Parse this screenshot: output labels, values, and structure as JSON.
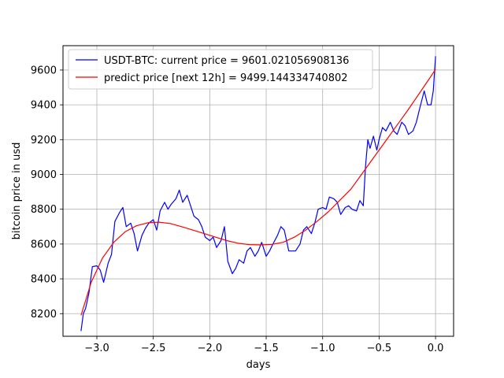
{
  "chart_data": {
    "type": "line",
    "title": "",
    "xlabel": "days",
    "ylabel": "bitcoin price in usd",
    "xlim": [
      -3.3,
      0.16
    ],
    "ylim": [
      8070,
      9740
    ],
    "grid": true,
    "legend_position": "upper-left",
    "x_ticks": [
      -3.0,
      -2.5,
      -2.0,
      -1.5,
      -1.0,
      -0.5,
      0.0
    ],
    "x_tick_labels": [
      "−3.0",
      "−2.5",
      "−2.0",
      "−1.5",
      "−1.0",
      "−0.5",
      "0.0"
    ],
    "y_ticks": [
      8200,
      8400,
      8600,
      8800,
      9000,
      9200,
      9400,
      9600
    ],
    "y_tick_labels": [
      "8200",
      "8400",
      "8600",
      "8800",
      "9000",
      "9200",
      "9400",
      "9600"
    ],
    "series": [
      {
        "name": "USDT-BTC: current price = 9601.021056908136",
        "color": "#0000ff",
        "x": [
          -3.14,
          -3.12,
          -3.1,
          -3.07,
          -3.04,
          -3.0,
          -2.97,
          -2.94,
          -2.9,
          -2.87,
          -2.84,
          -2.8,
          -2.77,
          -2.74,
          -2.7,
          -2.67,
          -2.64,
          -2.6,
          -2.57,
          -2.54,
          -2.5,
          -2.47,
          -2.44,
          -2.4,
          -2.37,
          -2.34,
          -2.3,
          -2.27,
          -2.24,
          -2.2,
          -2.17,
          -2.14,
          -2.1,
          -2.07,
          -2.04,
          -2.0,
          -1.97,
          -1.94,
          -1.9,
          -1.87,
          -1.84,
          -1.8,
          -1.77,
          -1.74,
          -1.7,
          -1.67,
          -1.64,
          -1.6,
          -1.57,
          -1.54,
          -1.5,
          -1.47,
          -1.44,
          -1.4,
          -1.37,
          -1.34,
          -1.3,
          -1.27,
          -1.24,
          -1.2,
          -1.17,
          -1.14,
          -1.1,
          -1.07,
          -1.04,
          -1.0,
          -0.97,
          -0.94,
          -0.9,
          -0.87,
          -0.84,
          -0.8,
          -0.77,
          -0.74,
          -0.7,
          -0.67,
          -0.64,
          -0.62,
          -0.6,
          -0.58,
          -0.55,
          -0.52,
          -0.5,
          -0.47,
          -0.44,
          -0.4,
          -0.37,
          -0.34,
          -0.3,
          -0.27,
          -0.24,
          -0.2,
          -0.17,
          -0.14,
          -0.1,
          -0.07,
          -0.04,
          -0.02,
          0.0
        ],
        "y": [
          8100,
          8200,
          8230,
          8320,
          8470,
          8475,
          8450,
          8380,
          8490,
          8540,
          8730,
          8780,
          8810,
          8700,
          8720,
          8660,
          8560,
          8650,
          8690,
          8720,
          8740,
          8680,
          8790,
          8840,
          8800,
          8830,
          8860,
          8910,
          8840,
          8880,
          8820,
          8760,
          8740,
          8700,
          8640,
          8620,
          8640,
          8580,
          8620,
          8700,
          8500,
          8430,
          8460,
          8510,
          8490,
          8560,
          8580,
          8530,
          8560,
          8610,
          8530,
          8560,
          8600,
          8650,
          8700,
          8680,
          8560,
          8560,
          8560,
          8600,
          8680,
          8700,
          8660,
          8720,
          8800,
          8810,
          8800,
          8870,
          8860,
          8840,
          8770,
          8810,
          8820,
          8800,
          8790,
          8850,
          8820,
          9050,
          9200,
          9150,
          9220,
          9140,
          9200,
          9270,
          9250,
          9300,
          9250,
          9230,
          9300,
          9280,
          9230,
          9250,
          9300,
          9380,
          9480,
          9400,
          9400,
          9480,
          9680
        ]
      },
      {
        "name": "predict price [next 12h] = 9499.144334740802",
        "color": "#ff0000",
        "x": [
          -3.14,
          -3.05,
          -2.95,
          -2.85,
          -2.75,
          -2.65,
          -2.55,
          -2.45,
          -2.35,
          -2.25,
          -2.15,
          -2.05,
          -1.95,
          -1.85,
          -1.75,
          -1.65,
          -1.55,
          -1.45,
          -1.35,
          -1.25,
          -1.15,
          -1.05,
          -0.95,
          -0.85,
          -0.75,
          -0.65,
          -0.55,
          -0.45,
          -0.35,
          -0.25,
          -0.15,
          -0.05,
          0.0
        ],
        "y": [
          8190,
          8380,
          8520,
          8610,
          8670,
          8705,
          8722,
          8726,
          8718,
          8700,
          8680,
          8660,
          8640,
          8620,
          8605,
          8597,
          8595,
          8598,
          8610,
          8640,
          8680,
          8730,
          8785,
          8850,
          8915,
          9005,
          9095,
          9185,
          9275,
          9365,
          9460,
          9555,
          9605
        ]
      }
    ]
  }
}
